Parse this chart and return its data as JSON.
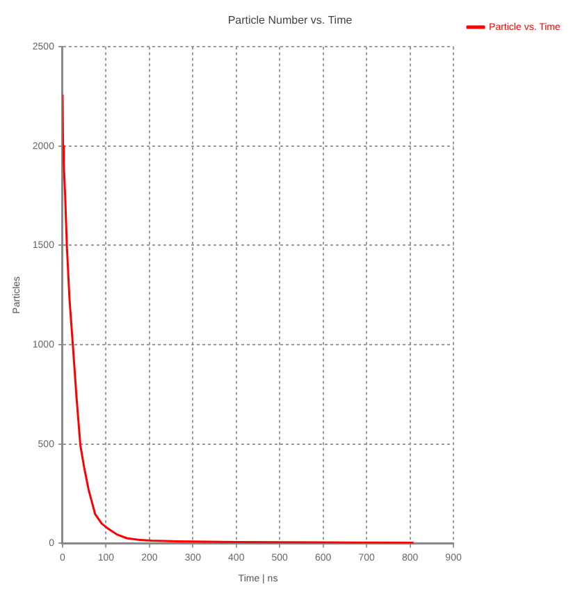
{
  "chart_data": {
    "type": "line",
    "title": "Particle Number vs. Time",
    "xlabel": "Time | ns",
    "ylabel": "Particles",
    "series": [
      {
        "name": "Particle vs. Time",
        "color": "#ff0000",
        "x": [
          0,
          1,
          3,
          6,
          10,
          16,
          24,
          32,
          41,
          50,
          60,
          75,
          90,
          103,
          125,
          148,
          175,
          205,
          250,
          300,
          400,
          500,
          600,
          700,
          808
        ],
        "values": [
          2260,
          2000,
          1900,
          1750,
          1494,
          1230,
          990,
          740,
          494,
          380,
          270,
          147,
          100,
          77,
          45,
          26,
          18,
          14,
          11,
          9,
          7,
          6,
          5,
          4,
          3
        ]
      }
    ],
    "xlim": [
      0,
      900
    ],
    "xticks": [
      0,
      100,
      200,
      300,
      400,
      500,
      600,
      700,
      800,
      900
    ],
    "ylim": [
      0,
      2500
    ],
    "yticks": [
      0,
      500,
      1000,
      1500,
      2000,
      2500
    ],
    "grid": true,
    "legend": "right",
    "marker": "none",
    "line_style": "solid"
  }
}
